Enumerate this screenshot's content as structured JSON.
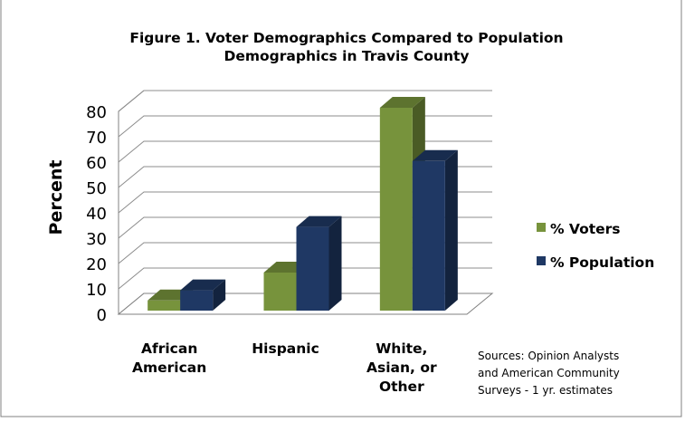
{
  "chart_data": {
    "type": "bar",
    "title_lines": [
      "Figure 1. Voter Demographics Compared to Population",
      "Demographics in Travis County"
    ],
    "ylabel": "Percent",
    "xlabel": "",
    "categories": [
      [
        "African",
        "American"
      ],
      [
        "Hispanic"
      ],
      [
        "White,",
        "Asian, or",
        "Other"
      ]
    ],
    "series": [
      {
        "name": "% Voters",
        "values": [
          4,
          15,
          80
        ],
        "color": "#77933c"
      },
      {
        "name": "% Population",
        "values": [
          8,
          33,
          59
        ],
        "color": "#1f3864"
      }
    ],
    "ylim": [
      0,
      80
    ],
    "yticks": [
      "0",
      "10",
      "20",
      "30",
      "40",
      "50",
      "60",
      "70",
      "80"
    ],
    "grid": true,
    "legend_position": "right",
    "source_note": [
      "Sources: Opinion Analysts",
      "and American Community",
      "Surveys - 1 yr. estimates"
    ]
  }
}
